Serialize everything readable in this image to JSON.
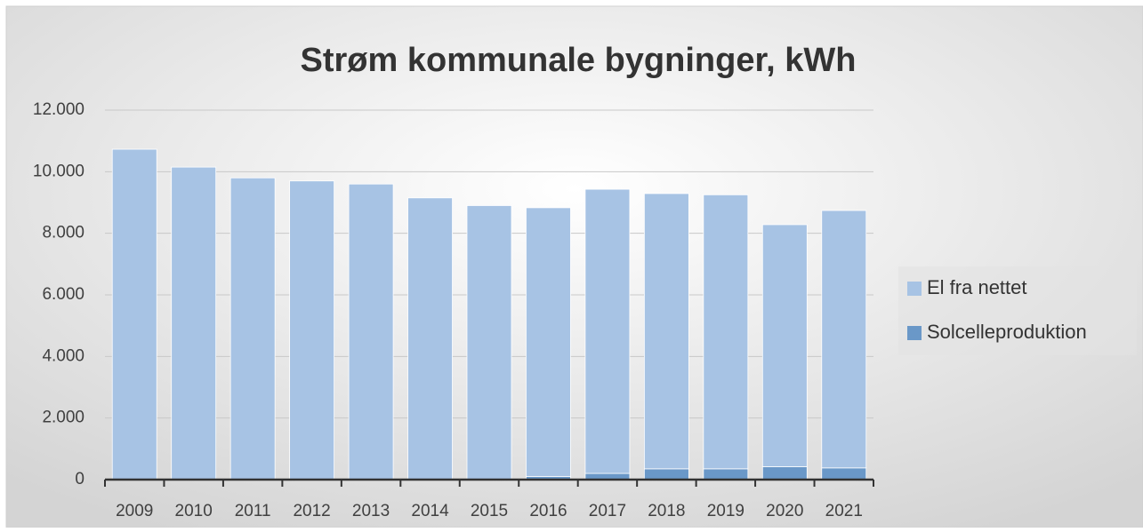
{
  "chart_data": {
    "type": "stacked_bar",
    "title": "Strøm kommunale bygninger, kWh",
    "categories": [
      "2009",
      "2010",
      "2011",
      "2012",
      "2013",
      "2014",
      "2015",
      "2016",
      "2017",
      "2018",
      "2019",
      "2020",
      "2021"
    ],
    "series": [
      {
        "name": "Solcelleproduktion",
        "color": "#6a98c8",
        "values": [
          0,
          0,
          0,
          0,
          0,
          0,
          0,
          100,
          200,
          350,
          350,
          420,
          380
        ]
      },
      {
        "name": "El fra nettet",
        "color": "#a7c3e4",
        "values": [
          10730,
          10150,
          9800,
          9700,
          9600,
          9150,
          8900,
          8730,
          9230,
          8940,
          8900,
          7860,
          8360
        ]
      }
    ],
    "ylim": [
      0,
      12000
    ],
    "yticks": [
      0,
      {
        "value": 2000,
        "label": "2.000"
      },
      {
        "value": 4000,
        "label": "4.000"
      },
      {
        "value": 6000,
        "label": "6.000"
      },
      {
        "value": 8000,
        "label": "8.000"
      },
      {
        "value": 10000,
        "label": "10.000"
      },
      {
        "value": 12000,
        "label": "12.000"
      }
    ],
    "grid": true,
    "legend": "right"
  }
}
